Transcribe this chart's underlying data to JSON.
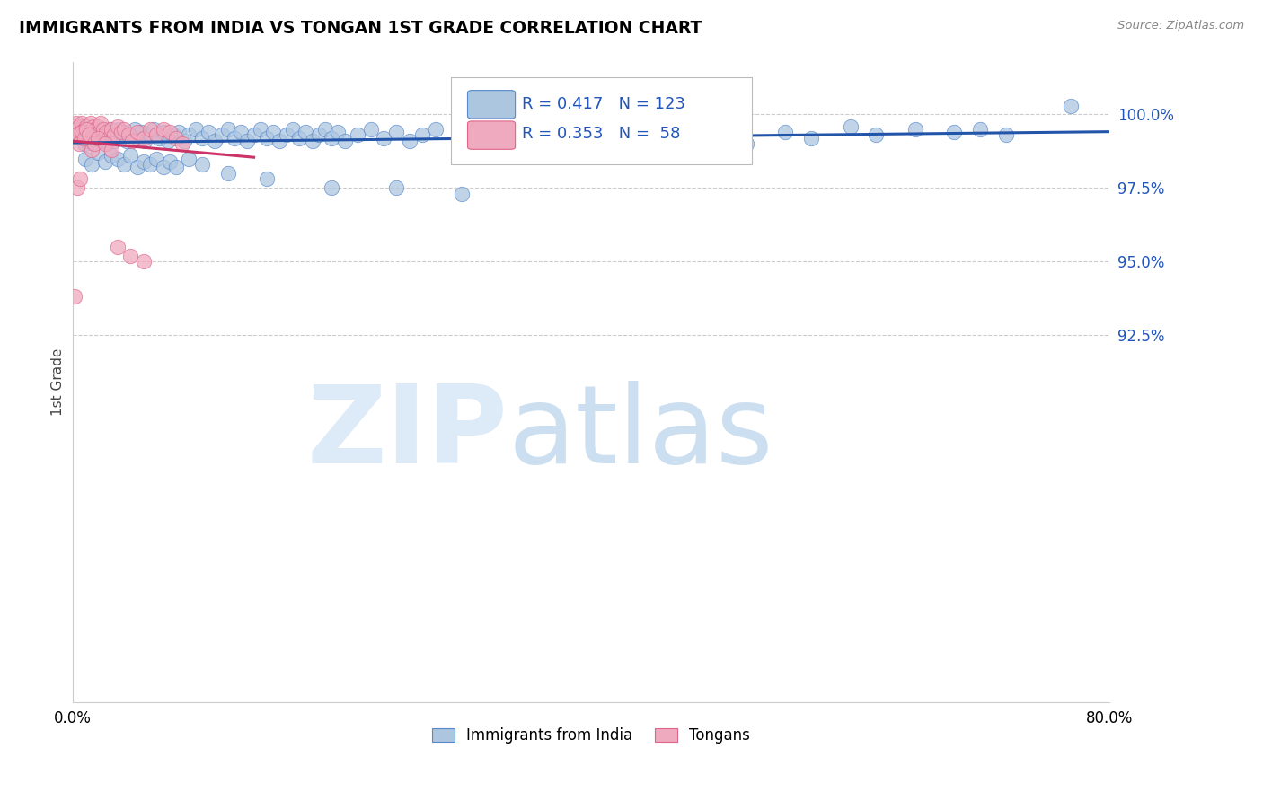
{
  "title": "IMMIGRANTS FROM INDIA VS TONGAN 1ST GRADE CORRELATION CHART",
  "source": "Source: ZipAtlas.com",
  "ylabel": "1st Grade",
  "legend_blue_r": "R = 0.417",
  "legend_blue_n": "N = 123",
  "legend_pink_r": "R = 0.353",
  "legend_pink_n": "N =  58",
  "legend_label_blue": "Immigrants from India",
  "legend_label_pink": "Tongans",
  "blue_color": "#adc6e0",
  "blue_edge_color": "#5588cc",
  "blue_line_color": "#2255aa",
  "pink_color": "#f0aac0",
  "pink_edge_color": "#dd6688",
  "pink_line_color": "#cc3366",
  "xlim": [
    0,
    80
  ],
  "ylim": [
    80,
    101.8
  ],
  "yticks": [
    92.5,
    95.0,
    97.5,
    100.0
  ],
  "xticks": [
    0,
    10,
    20,
    30,
    40,
    50,
    60,
    70,
    80
  ],
  "blue_x": [
    0.3,
    0.5,
    0.6,
    0.7,
    0.8,
    0.9,
    1.0,
    1.1,
    1.2,
    1.3,
    1.4,
    1.5,
    1.6,
    1.7,
    1.8,
    1.9,
    2.0,
    2.1,
    2.2,
    2.3,
    2.4,
    2.5,
    2.6,
    2.7,
    2.8,
    2.9,
    3.0,
    3.1,
    3.2,
    3.4,
    3.6,
    3.8,
    4.0,
    4.2,
    4.5,
    4.8,
    5.0,
    5.3,
    5.6,
    6.0,
    6.3,
    6.7,
    7.0,
    7.4,
    7.8,
    8.2,
    8.6,
    9.0,
    9.5,
    10.0,
    10.5,
    11.0,
    11.5,
    12.0,
    12.5,
    13.0,
    13.5,
    14.0,
    14.5,
    15.0,
    15.5,
    16.0,
    16.5,
    17.0,
    17.5,
    18.0,
    18.5,
    19.0,
    19.5,
    20.0,
    20.5,
    21.0,
    22.0,
    23.0,
    24.0,
    25.0,
    26.0,
    27.0,
    28.0,
    30.0,
    32.0,
    33.0,
    35.0,
    37.0,
    38.0,
    40.0,
    42.0,
    44.0,
    46.0,
    48.0,
    50.0,
    52.0,
    55.0,
    57.0,
    60.0,
    62.0,
    65.0,
    68.0,
    70.0,
    72.0,
    1.0,
    1.5,
    2.0,
    2.5,
    3.0,
    3.5,
    4.0,
    4.5,
    5.0,
    5.5,
    6.0,
    6.5,
    7.0,
    7.5,
    8.0,
    9.0,
    10.0,
    12.0,
    15.0,
    20.0,
    25.0,
    30.0,
    77.0
  ],
  "blue_y": [
    99.4,
    99.3,
    99.5,
    99.2,
    99.6,
    99.0,
    99.4,
    99.1,
    99.5,
    99.3,
    99.2,
    99.4,
    99.0,
    99.3,
    99.5,
    99.1,
    99.4,
    99.2,
    99.5,
    99.3,
    99.1,
    99.4,
    99.2,
    99.0,
    99.3,
    99.5,
    99.2,
    99.4,
    99.1,
    99.3,
    99.5,
    99.2,
    99.4,
    99.1,
    99.3,
    99.5,
    99.2,
    99.4,
    99.1,
    99.3,
    99.5,
    99.2,
    99.4,
    99.1,
    99.3,
    99.4,
    99.1,
    99.3,
    99.5,
    99.2,
    99.4,
    99.1,
    99.3,
    99.5,
    99.2,
    99.4,
    99.1,
    99.3,
    99.5,
    99.2,
    99.4,
    99.1,
    99.3,
    99.5,
    99.2,
    99.4,
    99.1,
    99.3,
    99.5,
    99.2,
    99.4,
    99.1,
    99.3,
    99.5,
    99.2,
    99.4,
    99.1,
    99.3,
    99.5,
    99.2,
    99.4,
    99.1,
    99.3,
    99.5,
    99.2,
    99.4,
    99.1,
    99.3,
    99.5,
    99.2,
    98.7,
    99.0,
    99.4,
    99.2,
    99.6,
    99.3,
    99.5,
    99.4,
    99.5,
    99.3,
    98.5,
    98.3,
    98.7,
    98.4,
    98.6,
    98.5,
    98.3,
    98.6,
    98.2,
    98.4,
    98.3,
    98.5,
    98.2,
    98.4,
    98.2,
    98.5,
    98.3,
    98.0,
    97.8,
    97.5,
    97.5,
    97.3,
    100.3
  ],
  "pink_x": [
    0.1,
    0.2,
    0.3,
    0.4,
    0.5,
    0.6,
    0.7,
    0.8,
    0.9,
    1.0,
    1.1,
    1.2,
    1.3,
    1.4,
    1.5,
    1.6,
    1.7,
    1.8,
    1.9,
    2.0,
    2.1,
    2.2,
    2.3,
    2.4,
    2.6,
    2.8,
    3.0,
    3.2,
    3.5,
    3.8,
    4.0,
    4.3,
    4.6,
    5.0,
    5.5,
    6.0,
    6.5,
    7.0,
    7.5,
    8.0,
    8.5,
    0.3,
    0.5,
    0.7,
    0.9,
    1.1,
    1.3,
    1.5,
    1.7,
    2.0,
    2.5,
    3.0,
    0.4,
    0.6,
    3.5,
    4.5,
    5.5,
    0.2
  ],
  "pink_y": [
    99.6,
    99.4,
    99.7,
    99.5,
    99.6,
    99.4,
    99.7,
    99.3,
    99.5,
    99.4,
    99.6,
    99.3,
    99.5,
    99.7,
    99.4,
    99.6,
    99.2,
    99.5,
    99.3,
    99.6,
    99.4,
    99.7,
    99.3,
    99.5,
    99.4,
    99.2,
    99.5,
    99.3,
    99.6,
    99.4,
    99.5,
    99.3,
    99.1,
    99.4,
    99.2,
    99.5,
    99.3,
    99.5,
    99.4,
    99.2,
    99.0,
    99.3,
    99.0,
    99.4,
    99.2,
    99.5,
    99.3,
    98.8,
    99.0,
    99.2,
    99.0,
    98.8,
    97.5,
    97.8,
    95.5,
    95.2,
    95.0,
    93.8
  ]
}
